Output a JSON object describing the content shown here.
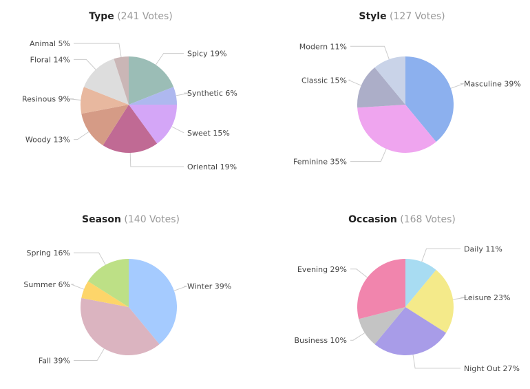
{
  "chart_data": [
    {
      "type": "pie",
      "title": "Type",
      "votes_label": "(241 Votes)",
      "slices": [
        {
          "label": "Spicy 19%",
          "value": 19,
          "color": "#9bbdb6"
        },
        {
          "label": "Synthetic 6%",
          "value": 6,
          "color": "#aeb8ef"
        },
        {
          "label": "Sweet 15%",
          "value": 15,
          "color": "#d4a6f7"
        },
        {
          "label": "Oriental 19%",
          "value": 19,
          "color": "#c06a94"
        },
        {
          "label": "Woody 13%",
          "value": 13,
          "color": "#d59b86"
        },
        {
          "label": "Resinous 9%",
          "value": 9,
          "color": "#e8b89f"
        },
        {
          "label": "Floral 14%",
          "value": 14,
          "color": "#dddddd"
        },
        {
          "label": "Animal 5%",
          "value": 5,
          "color": "#cab6b6"
        }
      ]
    },
    {
      "type": "pie",
      "title": "Style",
      "votes_label": "(127 Votes)",
      "slices": [
        {
          "label": "Masculine 39%",
          "value": 39,
          "color": "#8cb0ee"
        },
        {
          "label": "Feminine 35%",
          "value": 35,
          "color": "#efa5ef"
        },
        {
          "label": "Classic 15%",
          "value": 15,
          "color": "#acaec8"
        },
        {
          "label": "Modern 11%",
          "value": 11,
          "color": "#c9d3e8"
        }
      ]
    },
    {
      "type": "pie",
      "title": "Season",
      "votes_label": "(140 Votes)",
      "slices": [
        {
          "label": "Winter 39%",
          "value": 39,
          "color": "#a5cbff"
        },
        {
          "label": "Fall 39%",
          "value": 39,
          "color": "#dbb4c0"
        },
        {
          "label": "Summer 6%",
          "value": 6,
          "color": "#fdd56a"
        },
        {
          "label": "Spring 16%",
          "value": 16,
          "color": "#bde086"
        }
      ]
    },
    {
      "type": "pie",
      "title": "Occasion",
      "votes_label": "(168 Votes)",
      "slices": [
        {
          "label": "Daily 11%",
          "value": 11,
          "color": "#a8dcf2"
        },
        {
          "label": "Leisure 23%",
          "value": 23,
          "color": "#f4ea8a"
        },
        {
          "label": "Night Out 27%",
          "value": 27,
          "color": "#a89ce8"
        },
        {
          "label": "Business 10%",
          "value": 10,
          "color": "#c4c4c4"
        },
        {
          "label": "Evening 29%",
          "value": 29,
          "color": "#f185ad"
        }
      ]
    }
  ]
}
